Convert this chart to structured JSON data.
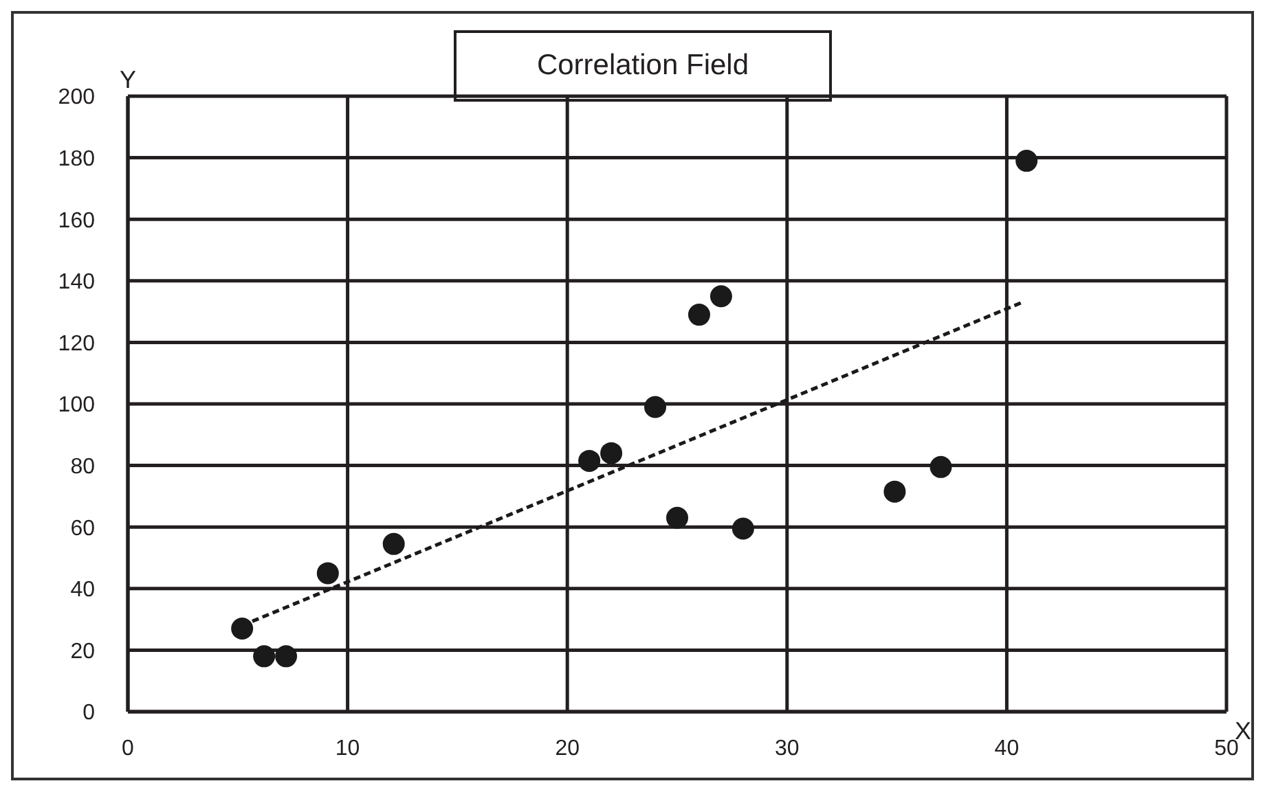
{
  "chart_data": {
    "type": "scatter",
    "title": "Correlation Field",
    "xlabel": "X",
    "ylabel": "Y",
    "xlim": [
      0,
      50
    ],
    "xticks": [
      0,
      10,
      20,
      30,
      40,
      50
    ],
    "ylim": [
      0,
      200
    ],
    "yticks": [
      0,
      20,
      40,
      60,
      80,
      100,
      120,
      140,
      160,
      180,
      200
    ],
    "grid": true,
    "series": [
      {
        "color": "#1a1a1a",
        "marker": "circle",
        "x": [
          5.2,
          6.2,
          7.2,
          9.1,
          12.1,
          21.0,
          22.0,
          24.0,
          25.0,
          26.0,
          27.0,
          28.0,
          34.9,
          37.0,
          40.9
        ],
        "values": [
          27,
          18,
          18,
          45,
          54.5,
          81.5,
          84,
          99,
          63,
          129,
          135,
          59.5,
          71.5,
          79.5,
          179
        ]
      },
      {
        "type": "line",
        "color": "#1a1a1a",
        "line_style": "dashed",
        "marker": "none",
        "x": [
          5.2,
          40.7
        ],
        "values": [
          28,
          133
        ]
      }
    ]
  }
}
